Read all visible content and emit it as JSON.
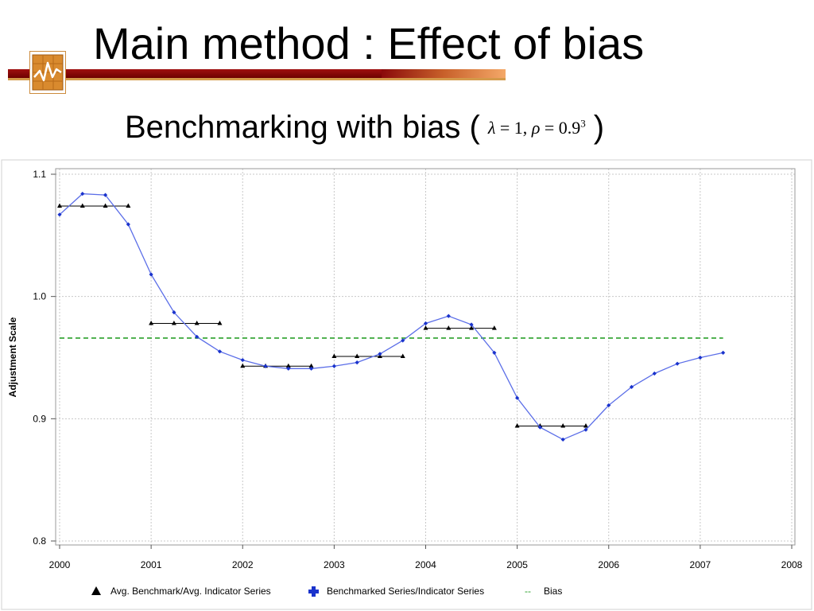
{
  "slide": {
    "title": "Main method : Effect of bias",
    "subtitle_prefix": "Benchmarking with bias (",
    "subtitle_suffix": ")",
    "formula": {
      "lambda_symbol": "λ",
      "lambda_eq": " = 1,",
      "rho_symbol": "ρ",
      "rho_eq": " = 0.9",
      "exponent": "3"
    }
  },
  "logo": {
    "icon": "line-chart-icon"
  },
  "colors": {
    "benchmarked": "#5b6ee8",
    "benchmarked_marker": "#1a33cc",
    "avg_benchmark": "#000000",
    "bias": "#2aa02a",
    "grid": "#c8c8c8",
    "title_bar": "#8b0000"
  },
  "chart_data": {
    "type": "line",
    "xlim": [
      2000,
      2008
    ],
    "ylim": [
      0.8,
      1.1
    ],
    "x_ticks": [
      "2000",
      "2001",
      "2002",
      "2003",
      "2004",
      "2005",
      "2006",
      "2007",
      "2008"
    ],
    "y_ticks": [
      "0.8",
      "0.9",
      "1.0",
      "1.1"
    ],
    "xlabel": "",
    "ylabel": "Adjustment Scale",
    "grid": true,
    "legend_position": "bottom",
    "series": [
      {
        "name": "Benchmarked Series/Indicator Series",
        "style": "line-markers",
        "x": [
          2000,
          2000.25,
          2000.5,
          2000.75,
          2001,
          2001.25,
          2001.5,
          2001.75,
          2002,
          2002.25,
          2002.5,
          2002.75,
          2003,
          2003.25,
          2003.5,
          2003.75,
          2004,
          2004.25,
          2004.5,
          2004.75,
          2005,
          2005.25,
          2005.5,
          2005.75,
          2006,
          2006.25,
          2006.5,
          2006.75,
          2007,
          2007.25
        ],
        "y": [
          1.067,
          1.084,
          1.083,
          1.059,
          1.018,
          0.987,
          0.967,
          0.955,
          0.948,
          0.943,
          0.941,
          0.941,
          0.943,
          0.946,
          0.953,
          0.964,
          0.978,
          0.984,
          0.977,
          0.954,
          0.917,
          0.893,
          0.883,
          0.891,
          0.911,
          0.926,
          0.937,
          0.945,
          0.95,
          0.954
        ]
      },
      {
        "name": "Avg. Benchmark/Avg. Indicator Series",
        "style": "step-triangles",
        "segments": [
          {
            "x": [
              2000,
              2000.25,
              2000.5,
              2000.75
            ],
            "y": 1.074
          },
          {
            "x": [
              2001,
              2001.25,
              2001.5,
              2001.75
            ],
            "y": 0.978
          },
          {
            "x": [
              2002,
              2002.25,
              2002.5,
              2002.75
            ],
            "y": 0.943
          },
          {
            "x": [
              2003,
              2003.25,
              2003.5,
              2003.75
            ],
            "y": 0.951
          },
          {
            "x": [
              2004,
              2004.25,
              2004.5,
              2004.75
            ],
            "y": 0.974
          },
          {
            "x": [
              2005,
              2005.25,
              2005.5,
              2005.75
            ],
            "y": 0.894
          }
        ]
      },
      {
        "name": "Bias",
        "style": "dashed",
        "x": [
          2000,
          2007.25
        ],
        "y": [
          0.966,
          0.966
        ]
      }
    ],
    "legend": [
      {
        "label": "Avg. Benchmark/Avg. Indicator Series",
        "marker": "triangle"
      },
      {
        "label": "Benchmarked Series/Indicator Series",
        "marker": "cross"
      },
      {
        "label": "Bias",
        "marker": "dash",
        "symbol": "--"
      }
    ]
  }
}
